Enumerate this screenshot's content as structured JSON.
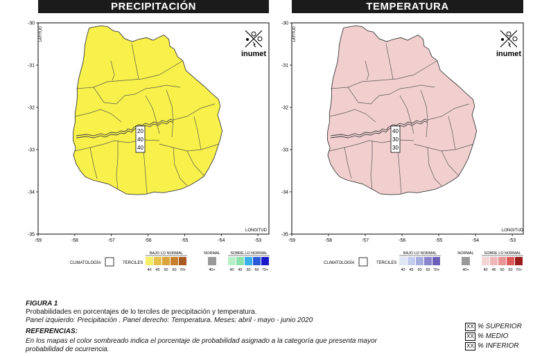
{
  "panels": {
    "left": {
      "title": "PRECIPITACIÓN",
      "fill": "#f8f04b",
      "values": [
        "20",
        "40",
        "40"
      ]
    },
    "right": {
      "title": "TEMPERATURA",
      "fill": "#f2cfcf",
      "values": [
        "40",
        "30",
        "30"
      ]
    }
  },
  "axes": {
    "lat_label": "LATITUD",
    "lon_label": "LONGITUD",
    "lat_ticks": [
      "-30",
      "-31",
      "-32",
      "-33",
      "-34",
      "-35"
    ],
    "lon_ticks": [
      "-59",
      "-58",
      "-57",
      "-56",
      "-55",
      "-54",
      "-53"
    ]
  },
  "brand": "inumet",
  "legend": {
    "climatologia": "CLIMATOLOGÍA",
    "terciles": "TERCILES",
    "normal": "NORMAL",
    "normal_value": "40+",
    "bajo": "BAJO LO NORMAL",
    "sobre": "SOBRE LO NORMAL",
    "scale": [
      "40",
      "45",
      "50",
      "60",
      "70+"
    ],
    "left_bajo_colors": [
      "#f7ee6a",
      "#e6c04a",
      "#d9a43a",
      "#c8802d",
      "#a85a22"
    ],
    "left_sobre_colors": [
      "#b6f0c8",
      "#8ee3ad",
      "#3bb0e6",
      "#2a5bd7",
      "#1a1acb"
    ],
    "right_bajo_colors": [
      "#dfe6f6",
      "#c5cdee",
      "#a6addf",
      "#8a84cf",
      "#6a60b8"
    ],
    "right_sobre_colors": [
      "#f5d6d6",
      "#efb8b8",
      "#e79494",
      "#dc5a5a",
      "#9b1a1a"
    ],
    "normal_color": "#9a9a9a"
  },
  "caption": {
    "figure": "FIGURA 1",
    "line1": "Probabilidades en porcentajes de lo terciles  de precipitación y temperatura.",
    "line2": "Panel izquierdo: Precipitación . Panel derecho: Temperatura. Meses: abril - mayo - junio 2020",
    "ref_title": "REFERENCIAS:",
    "ref1": "En los mapas el color sombreado indica el porcentaje de probabilidad asignado a la categoría que presenta mayor",
    "ref2": "probabilidad de ocurrencia."
  },
  "key": {
    "box": "XX",
    "superior": "% SUPERIOR",
    "medio": "% MEDIO",
    "inferior": "% INFERIOR"
  }
}
